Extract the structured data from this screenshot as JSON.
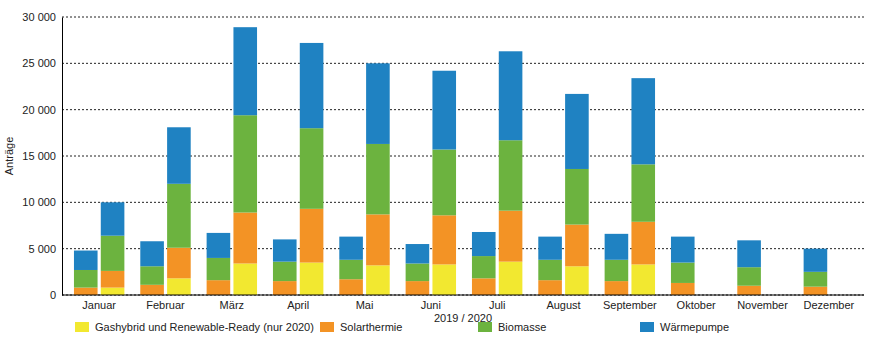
{
  "chart_data": {
    "type": "bar",
    "stacked": true,
    "grid": true,
    "legend": "bottom",
    "x_label": "2019 / 2020",
    "y_label": "Anträge",
    "categories": [
      "Januar",
      null,
      "Februar",
      null,
      "März",
      null,
      "April",
      null,
      "Mai",
      null,
      "Juni",
      null,
      "Juli",
      null,
      "August",
      null,
      "September",
      null,
      "Oktober",
      null,
      "November",
      null,
      "Dezember",
      null
    ],
    "ylim": [
      0,
      30000
    ],
    "yticks": [
      0,
      {
        "value": 5000,
        "label": "5 000"
      },
      {
        "value": 10000,
        "label": "10 000"
      },
      {
        "value": 15000,
        "label": "15 000"
      },
      {
        "value": 20000,
        "label": "20 000"
      },
      {
        "value": 25000,
        "label": "25 000"
      },
      {
        "value": 30000,
        "label": "30 000"
      }
    ],
    "series": [
      {
        "name": "Gashybrid und Renewable-Ready (nur 2020)",
        "color": "#f2e830",
        "values": [
          null,
          800,
          null,
          1800,
          null,
          3400,
          null,
          3500,
          null,
          3200,
          null,
          3300,
          null,
          3600,
          null,
          3100,
          null,
          3300,
          null,
          null,
          null,
          null,
          null,
          null
        ]
      },
      {
        "name": "Solarthermie",
        "color": "#f39325",
        "values": [
          800,
          1800,
          1100,
          3300,
          1600,
          5500,
          1500,
          5800,
          1700,
          5500,
          1500,
          5300,
          1800,
          5500,
          1600,
          4500,
          1500,
          4600,
          1300,
          null,
          1000,
          null,
          900,
          null
        ]
      },
      {
        "name": "Biomasse",
        "color": "#6cb33f",
        "values": [
          1900,
          3800,
          2000,
          6900,
          2400,
          10500,
          2100,
          8700,
          2100,
          7600,
          1900,
          7100,
          2400,
          7600,
          2200,
          6000,
          2300,
          6200,
          2200,
          null,
          2000,
          null,
          1600,
          null
        ]
      },
      {
        "name": "Wärmepumpe",
        "color": "#1f82c2",
        "values": [
          2100,
          3600,
          2700,
          6100,
          2700,
          9500,
          2400,
          9200,
          2500,
          8700,
          2100,
          8500,
          2600,
          9600,
          2500,
          8100,
          2800,
          9300,
          2800,
          null,
          2900,
          null,
          2500,
          null
        ]
      }
    ]
  }
}
